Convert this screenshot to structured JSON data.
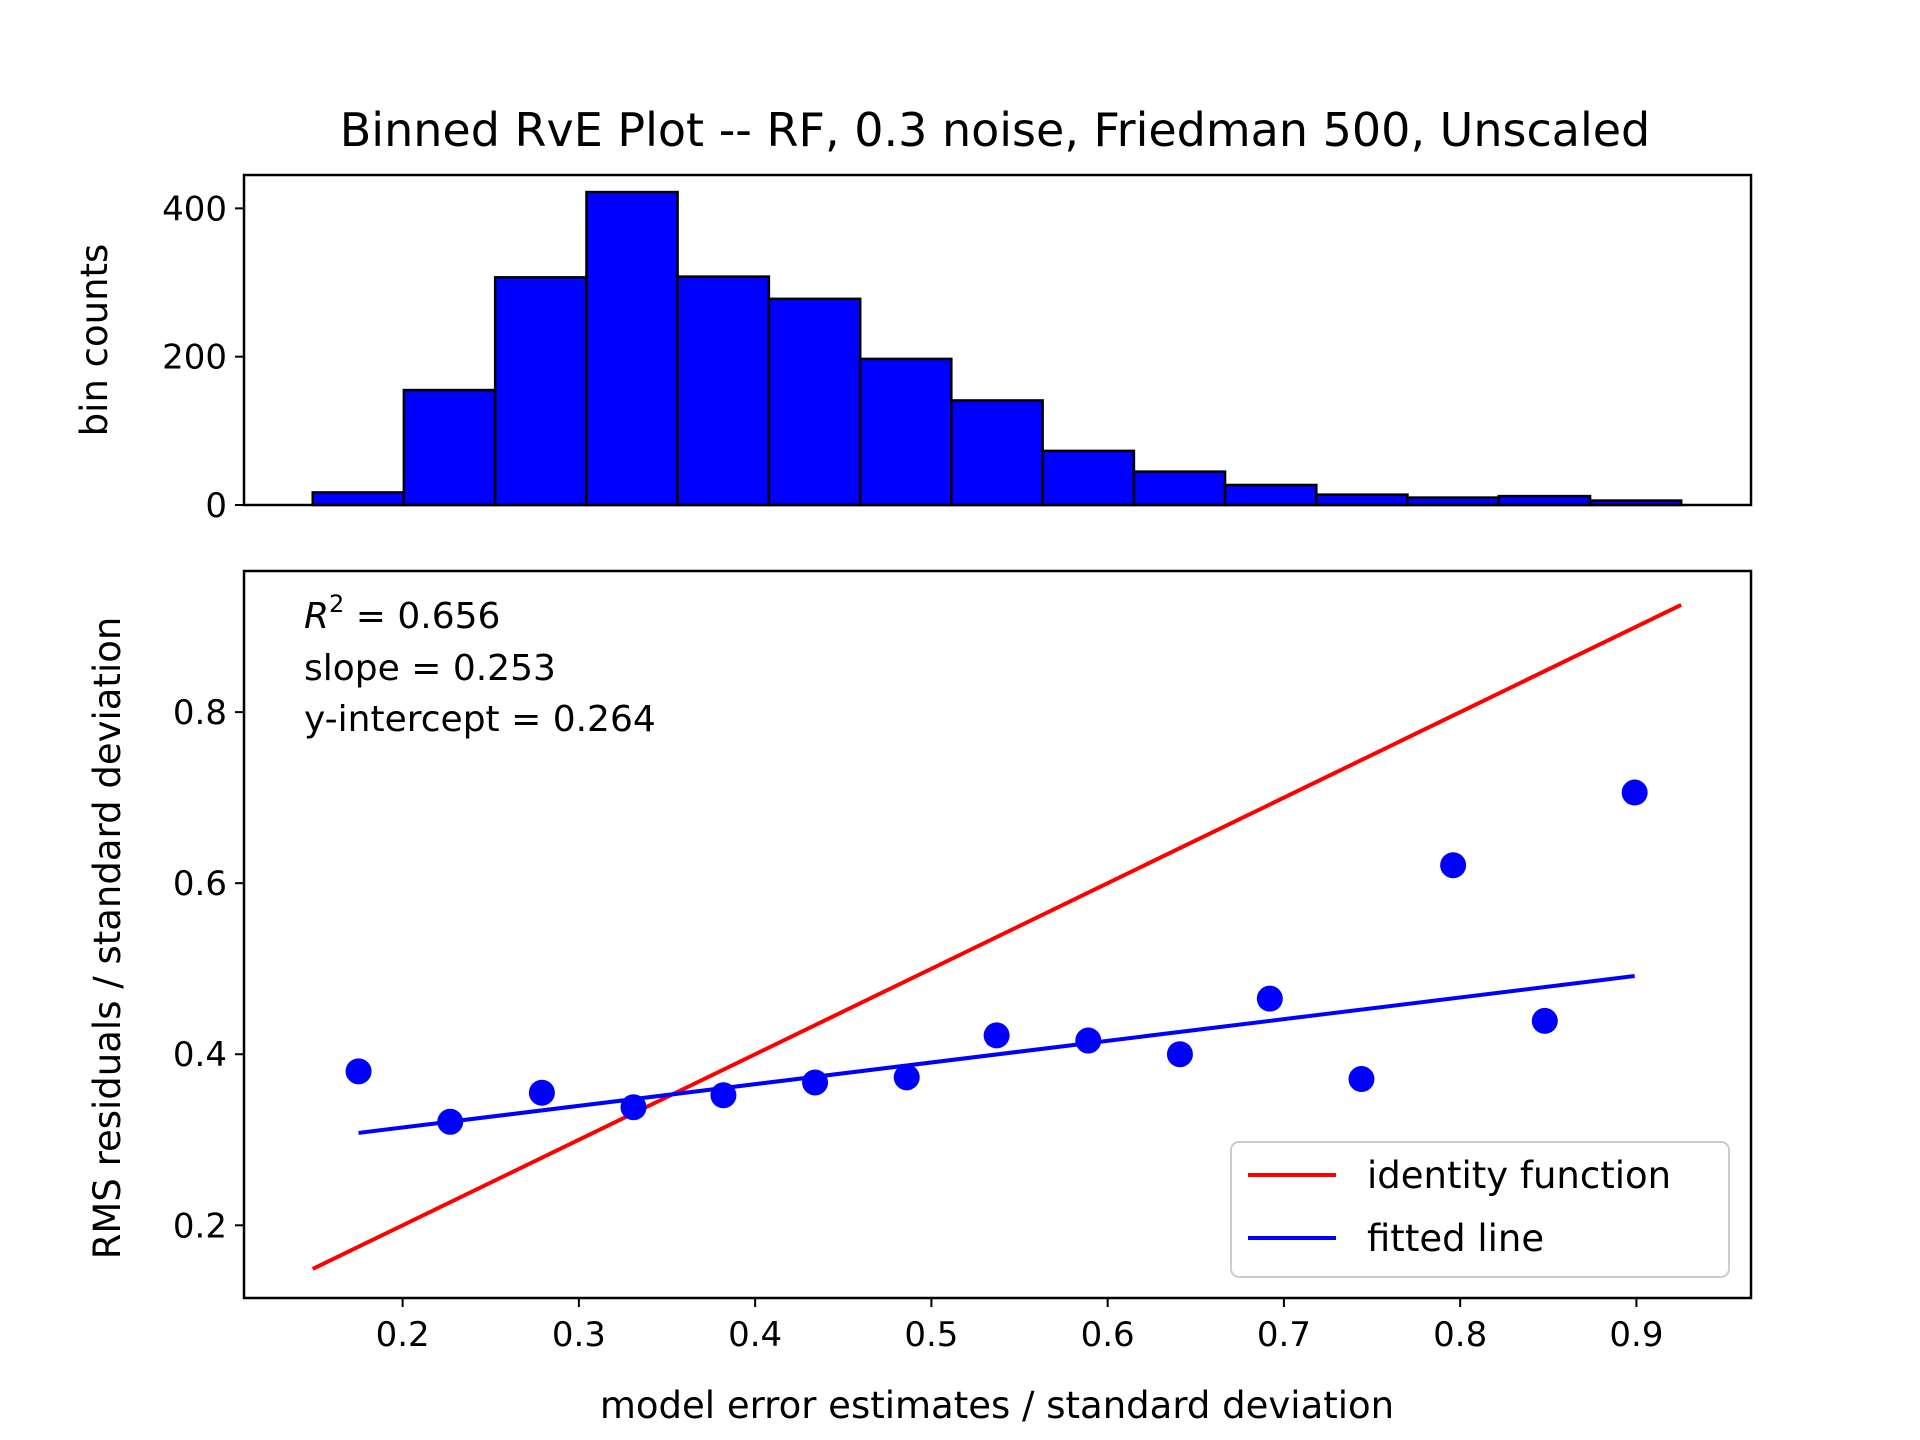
{
  "chart_data": [
    {
      "type": "bar",
      "title": "Binned RvE Plot -- RF, 0.3 noise, Friedman 500, Unscaled",
      "xlabel": "",
      "ylabel": "bin counts",
      "ylim": [
        0,
        445
      ],
      "yticks": [
        "0",
        "200",
        "400"
      ],
      "bin_edges": [
        0.149,
        0.2007,
        0.2525,
        0.3043,
        0.356,
        0.4078,
        0.4596,
        0.5113,
        0.5631,
        0.6149,
        0.6666,
        0.7184,
        0.7701,
        0.8219,
        0.8737,
        0.9254
      ],
      "values": [
        17,
        155,
        307,
        422,
        308,
        278,
        197,
        141,
        73,
        45,
        27,
        14,
        10,
        12,
        6
      ],
      "bar_color": "#0000ff",
      "edge_color": "#000000"
    },
    {
      "type": "scatter",
      "xlabel": "model error estimates / standard deviation",
      "ylabel": "RMS residuals / standard deviation",
      "xlim": [
        0.11,
        0.965
      ],
      "ylim": [
        0.115,
        0.965
      ],
      "xticks": [
        "0.2",
        "0.3",
        "0.4",
        "0.5",
        "0.6",
        "0.7",
        "0.8",
        "0.9"
      ],
      "yticks": [
        "0.2",
        "0.4",
        "0.6",
        "0.8"
      ],
      "points": {
        "x": [
          0.175,
          0.227,
          0.279,
          0.331,
          0.382,
          0.434,
          0.486,
          0.537,
          0.589,
          0.641,
          0.692,
          0.744,
          0.796,
          0.848,
          0.899
        ],
        "y": [
          0.38,
          0.321,
          0.355,
          0.338,
          0.352,
          0.367,
          0.373,
          0.422,
          0.416,
          0.4,
          0.465,
          0.371,
          0.621,
          0.439,
          0.706
        ],
        "color": "#0000ff"
      },
      "series": [
        {
          "name": "identity function",
          "x": [
            0.149,
            0.9254
          ],
          "y": [
            0.149,
            0.9254
          ],
          "color": "#ff0000"
        },
        {
          "name": "fitted line",
          "x": [
            0.175,
            0.899
          ],
          "y": [
            0.308,
            0.4915
          ],
          "color": "#0000ff"
        }
      ],
      "annotations": {
        "r2_symbol": "R",
        "r2_sup": "2",
        "r2_value": " = 0.656",
        "slope": "slope = 0.253",
        "intercept": "y-intercept = 0.264"
      },
      "legend_position": "bottom-right"
    }
  ]
}
